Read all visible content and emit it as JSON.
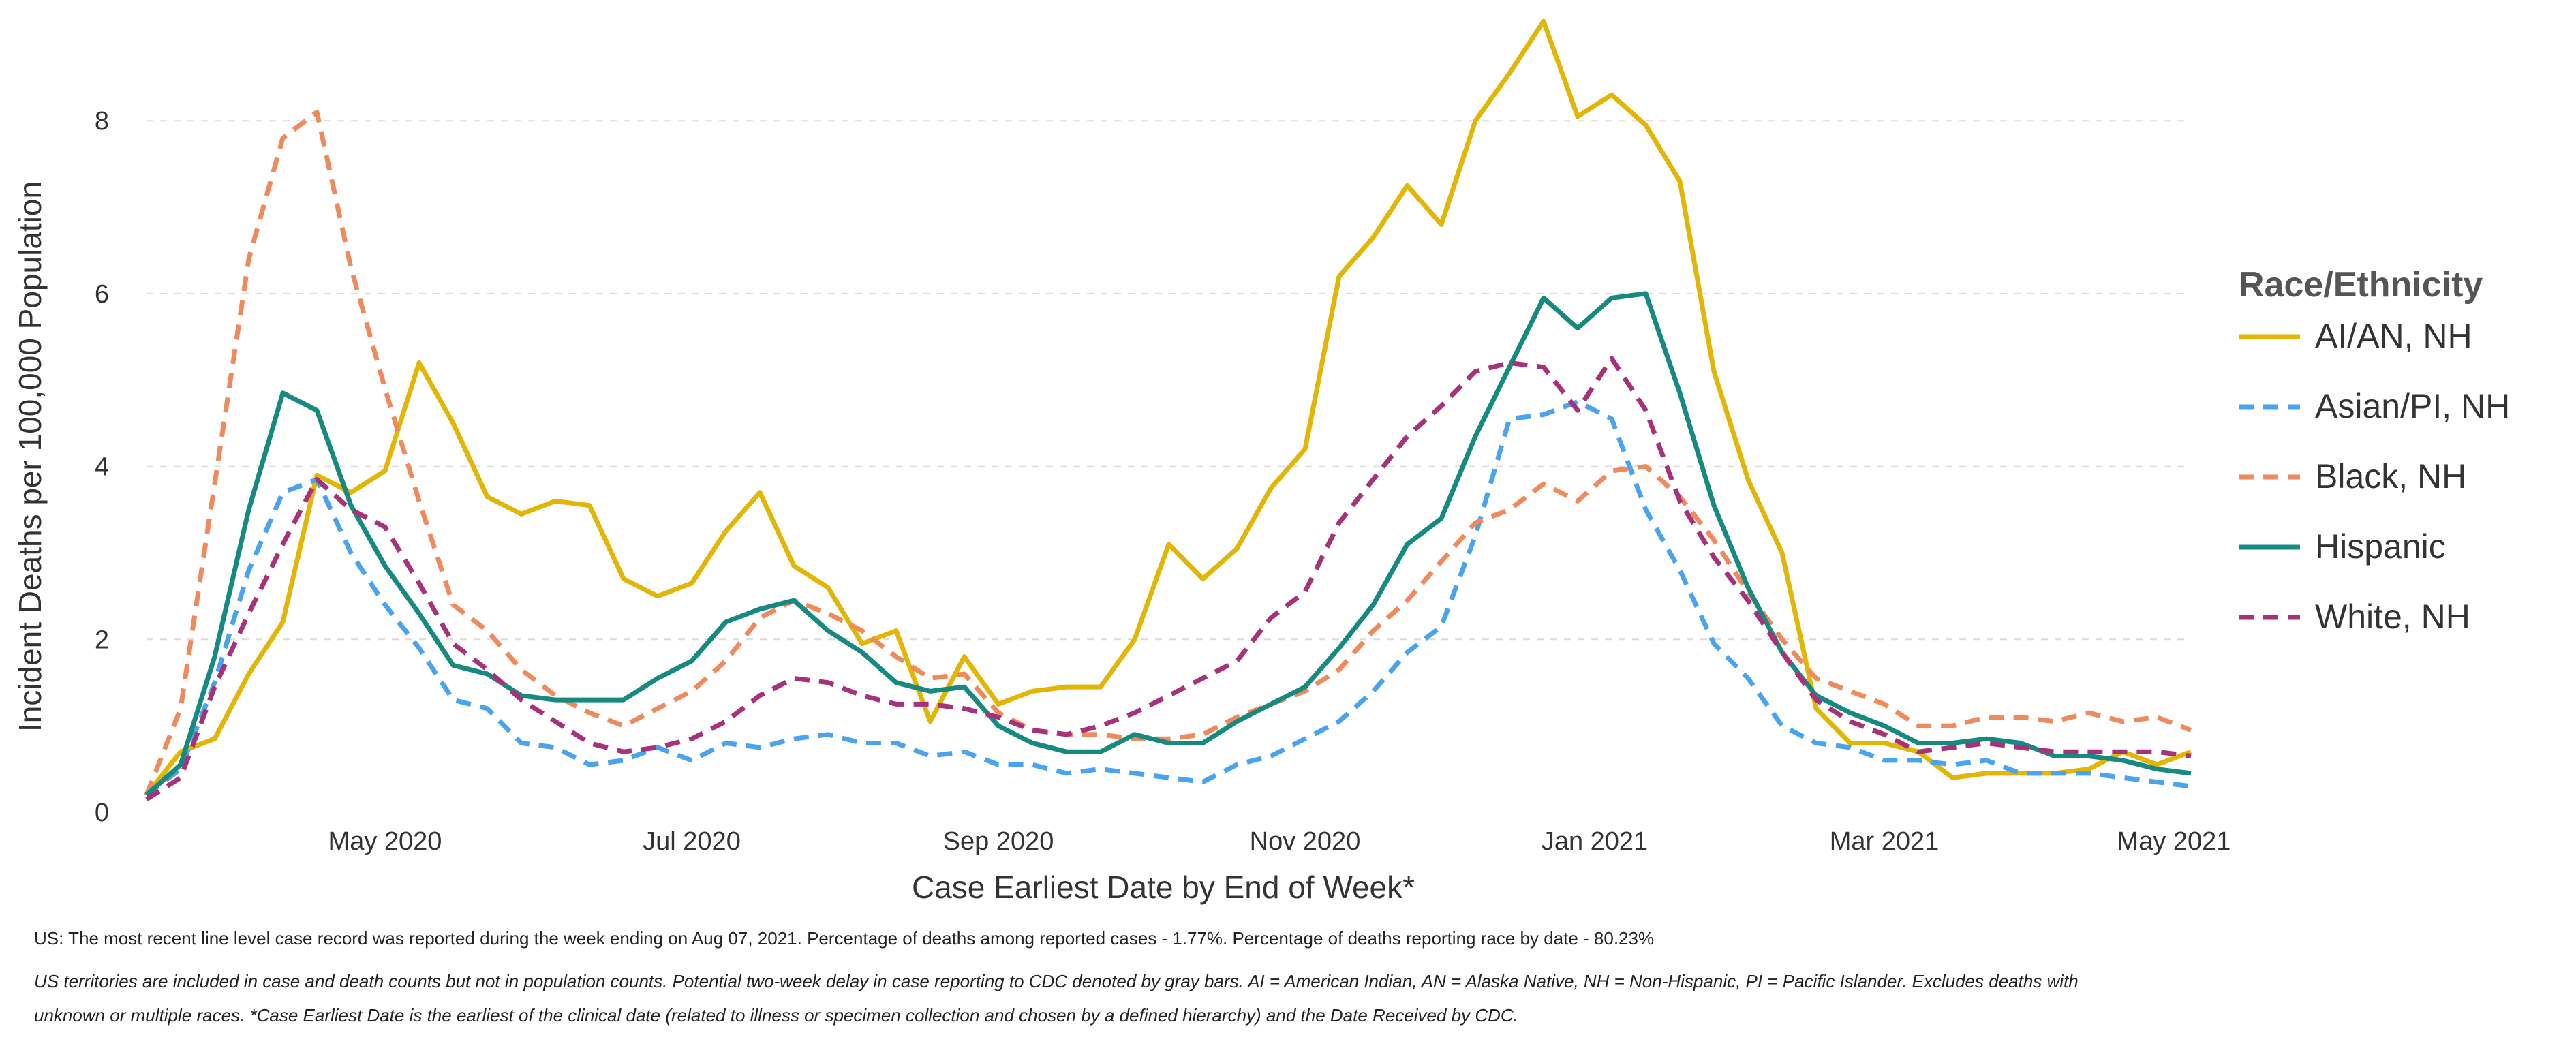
{
  "chart_data": {
    "type": "line",
    "title": "",
    "xlabel": "Case Earliest Date by End of Week*",
    "ylabel": "Incident Deaths per 100,000 Population",
    "ylim": [
      0,
      9.2
    ],
    "yticks": [
      0,
      2,
      4,
      6,
      8
    ],
    "x_range": [
      0,
      60
    ],
    "xticks": [
      {
        "pos": 7,
        "label": "May 2020"
      },
      {
        "pos": 16,
        "label": "Jul 2020"
      },
      {
        "pos": 25,
        "label": "Sep 2020"
      },
      {
        "pos": 34,
        "label": "Nov 2020"
      },
      {
        "pos": 42.5,
        "label": "Jan 2021"
      },
      {
        "pos": 51,
        "label": "Mar 2021"
      },
      {
        "pos": 59.5,
        "label": "May 2021"
      }
    ],
    "grid": true,
    "legend": {
      "title": "Race/Ethnicity",
      "placement": "right"
    },
    "series": [
      {
        "name": "AI/AN, NH",
        "color": "#e3b505",
        "dash": "solid",
        "values": [
          0.2,
          0.7,
          0.85,
          1.6,
          2.2,
          3.9,
          3.7,
          3.95,
          5.2,
          4.5,
          3.65,
          3.45,
          3.6,
          3.55,
          2.7,
          2.5,
          2.65,
          3.25,
          3.7,
          2.85,
          2.6,
          1.95,
          2.1,
          1.05,
          1.8,
          1.25,
          1.4,
          1.45,
          1.45,
          2.0,
          3.1,
          2.7,
          3.05,
          3.75,
          4.2,
          6.2,
          6.65,
          7.25,
          6.8,
          8.0,
          8.55,
          9.15,
          8.05,
          8.3,
          7.95,
          7.3,
          5.1,
          3.85,
          3.0,
          1.2,
          0.8,
          0.8,
          0.7,
          0.4,
          0.45,
          0.45,
          0.45,
          0.5,
          0.7,
          0.55,
          0.7
        ]
      },
      {
        "name": "Asian/PI, NH",
        "color": "#4aa3ef",
        "dash": "dashed",
        "values": [
          0.2,
          0.5,
          1.5,
          2.8,
          3.7,
          3.85,
          3.0,
          2.4,
          1.9,
          1.3,
          1.2,
          0.8,
          0.75,
          0.55,
          0.6,
          0.75,
          0.6,
          0.8,
          0.75,
          0.85,
          0.9,
          0.8,
          0.8,
          0.65,
          0.7,
          0.55,
          0.55,
          0.45,
          0.5,
          0.45,
          0.4,
          0.35,
          0.55,
          0.65,
          0.85,
          1.05,
          1.4,
          1.85,
          2.15,
          3.2,
          4.55,
          4.6,
          4.75,
          4.55,
          3.5,
          2.8,
          1.95,
          1.55,
          1.0,
          0.8,
          0.75,
          0.6,
          0.6,
          0.55,
          0.6,
          0.45,
          0.45,
          0.45,
          0.4,
          0.35,
          0.3
        ]
      },
      {
        "name": "Black, NH",
        "color": "#f08a5d",
        "dash": "dashed",
        "values": [
          0.2,
          1.2,
          3.8,
          6.4,
          7.8,
          8.1,
          6.3,
          4.9,
          3.6,
          2.4,
          2.1,
          1.65,
          1.35,
          1.15,
          1.0,
          1.2,
          1.4,
          1.75,
          2.25,
          2.45,
          2.3,
          2.1,
          1.8,
          1.55,
          1.6,
          1.15,
          0.95,
          0.9,
          0.9,
          0.85,
          0.85,
          0.9,
          1.1,
          1.25,
          1.4,
          1.65,
          2.1,
          2.45,
          2.9,
          3.35,
          3.5,
          3.8,
          3.6,
          3.95,
          4.0,
          3.65,
          3.15,
          2.55,
          2.0,
          1.55,
          1.4,
          1.25,
          1.0,
          1.0,
          1.1,
          1.1,
          1.05,
          1.15,
          1.05,
          1.1,
          0.95
        ]
      },
      {
        "name": "Hispanic",
        "color": "#168a80",
        "dash": "solid",
        "values": [
          0.2,
          0.55,
          1.8,
          3.5,
          4.85,
          4.65,
          3.55,
          2.85,
          2.3,
          1.7,
          1.6,
          1.35,
          1.3,
          1.3,
          1.3,
          1.55,
          1.75,
          2.2,
          2.35,
          2.45,
          2.1,
          1.85,
          1.5,
          1.4,
          1.45,
          1.0,
          0.8,
          0.7,
          0.7,
          0.9,
          0.8,
          0.8,
          1.05,
          1.25,
          1.45,
          1.9,
          2.4,
          3.1,
          3.4,
          4.35,
          5.15,
          5.95,
          5.6,
          5.95,
          6.0,
          4.85,
          3.55,
          2.6,
          1.85,
          1.35,
          1.15,
          1.0,
          0.8,
          0.8,
          0.85,
          0.8,
          0.65,
          0.65,
          0.6,
          0.5,
          0.45
        ]
      },
      {
        "name": "White, NH",
        "color": "#a8327a",
        "dash": "dashed",
        "values": [
          0.15,
          0.4,
          1.45,
          2.3,
          3.1,
          3.85,
          3.5,
          3.3,
          2.65,
          1.95,
          1.65,
          1.3,
          1.05,
          0.8,
          0.7,
          0.75,
          0.85,
          1.05,
          1.35,
          1.55,
          1.5,
          1.35,
          1.25,
          1.25,
          1.2,
          1.1,
          0.95,
          0.9,
          1.0,
          1.15,
          1.35,
          1.55,
          1.75,
          2.25,
          2.55,
          3.35,
          3.85,
          4.35,
          4.7,
          5.1,
          5.2,
          5.15,
          4.65,
          5.25,
          4.65,
          3.6,
          2.95,
          2.45,
          1.85,
          1.3,
          1.05,
          0.9,
          0.7,
          0.75,
          0.8,
          0.75,
          0.7,
          0.7,
          0.7,
          0.7,
          0.65
        ]
      }
    ]
  },
  "footnotes": {
    "line1": "US: The most recent line level case record was reported during the week ending on Aug 07, 2021. Percentage of deaths among reported cases - 1.77%. Percentage of deaths reporting race by date - 80.23%",
    "line2": "US territories are included in case and death counts but not in population counts. Potential two-week delay in case reporting to CDC denoted by gray bars. AI = American Indian, AN = Alaska Native, NH = Non-Hispanic, PI = Pacific Islander. Excludes deaths with",
    "line3": "unknown or multiple races. *Case Earliest Date is the earliest of the clinical date (related to illness or specimen collection and chosen by a defined hierarchy) and the Date Received by CDC."
  }
}
